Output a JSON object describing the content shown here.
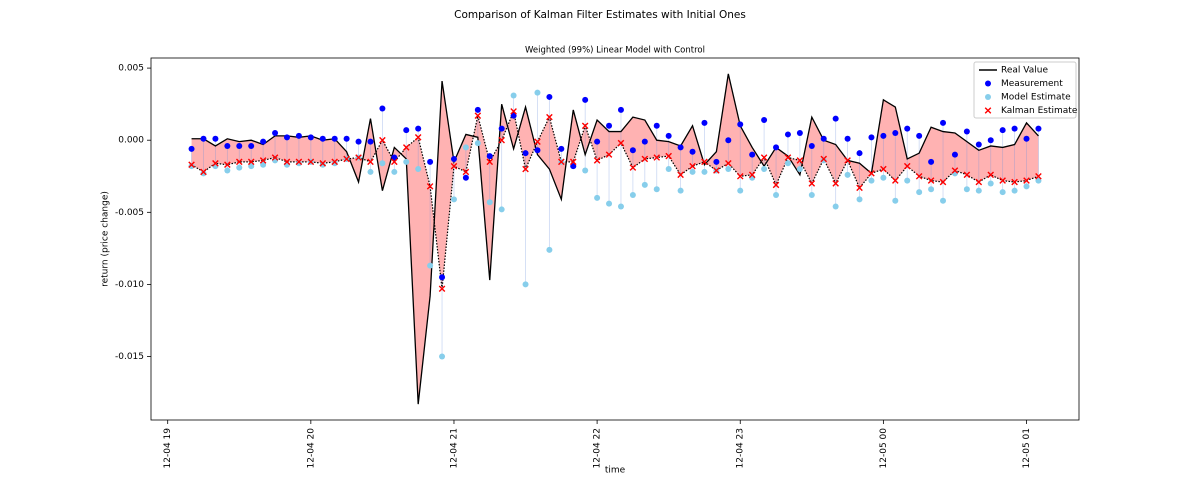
{
  "chart_data": {
    "type": "line",
    "title": "Comparison of Kalman Filter Estimates with Initial Ones",
    "subtitle": "Weighted (99%) Linear Model with Control",
    "x_label": "time",
    "y_label": "return (price change)",
    "legend": "upper right",
    "x": [
      "12-04 19:10",
      "12-04 19:15",
      "12-04 19:20",
      "12-04 19:25",
      "12-04 19:30",
      "12-04 19:35",
      "12-04 19:40",
      "12-04 19:45",
      "12-04 19:50",
      "12-04 19:55",
      "12-04 20:00",
      "12-04 20:05",
      "12-04 20:10",
      "12-04 20:15",
      "12-04 20:20",
      "12-04 20:25",
      "12-04 20:30",
      "12-04 20:35",
      "12-04 20:40",
      "12-04 20:45",
      "12-04 20:50",
      "12-04 20:55",
      "12-04 21:00",
      "12-04 21:05",
      "12-04 21:10",
      "12-04 21:15",
      "12-04 21:20",
      "12-04 21:25",
      "12-04 21:30",
      "12-04 21:35",
      "12-04 21:40",
      "12-04 21:45",
      "12-04 21:50",
      "12-04 21:55",
      "12-04 22:00",
      "12-04 22:05",
      "12-04 22:10",
      "12-04 22:15",
      "12-04 22:20",
      "12-04 22:25",
      "12-04 22:30",
      "12-04 22:35",
      "12-04 22:40",
      "12-04 22:45",
      "12-04 22:50",
      "12-04 22:55",
      "12-04 23:00",
      "12-04 23:05",
      "12-04 23:10",
      "12-04 23:15",
      "12-04 23:20",
      "12-04 23:25",
      "12-04 23:30",
      "12-04 23:35",
      "12-04 23:40",
      "12-04 23:45",
      "12-04 23:50",
      "12-04 23:55",
      "12-05 00:00",
      "12-05 00:05",
      "12-05 00:10",
      "12-05 00:15",
      "12-05 00:20",
      "12-05 00:25",
      "12-05 00:30",
      "12-05 00:35",
      "12-05 00:40",
      "12-05 00:45",
      "12-05 00:50",
      "12-05 00:55",
      "12-05 01:00",
      "12-05 01:05"
    ],
    "xlim": [
      "12-04 18:53",
      "12-05 01:22"
    ],
    "xticks": [
      {
        "value": "12-04 19:00",
        "label": "12-04 19"
      },
      {
        "value": "12-04 20:00",
        "label": "12-04 20"
      },
      {
        "value": "12-04 21:00",
        "label": "12-04 21"
      },
      {
        "value": "12-04 22:00",
        "label": "12-04 22"
      },
      {
        "value": "12-04 23:00",
        "label": "12-04 23"
      },
      {
        "value": "12-05 00:00",
        "label": "12-05 00"
      },
      {
        "value": "12-05 01:00",
        "label": "12-05 01"
      }
    ],
    "ylim": [
      -0.0194,
      0.0057
    ],
    "yticks": [
      -0.015,
      {
        "value": -0.01,
        "label": "-0.010"
      },
      -0.005,
      {
        "value": 0,
        "label": "0.000"
      },
      0.005
    ],
    "series": [
      {
        "name": "Real Value",
        "color": "#000000",
        "marker": "line",
        "values": [
          0.0001,
          0.0001,
          -0.0004,
          0.0001,
          -0.0001,
          0.0,
          -0.0003,
          0.0003,
          0.0003,
          0.0002,
          0.0003,
          0.0,
          0.0001,
          -0.0008,
          -0.0029,
          0.0015,
          -0.0035,
          -0.0005,
          -0.0013,
          -0.0183,
          -0.0108,
          0.0041,
          -0.0015,
          0.0004,
          0.0002,
          -0.0097,
          0.0025,
          -0.0006,
          0.0023,
          -0.001,
          -0.002,
          -0.0041,
          0.0021,
          -0.001,
          0.0014,
          0.0006,
          0.0006,
          0.0016,
          0.0014,
          0.0,
          -0.0001,
          -0.0004,
          0.001,
          -0.0017,
          -0.0008,
          0.0046,
          0.001,
          -0.0005,
          -0.0018,
          -0.0005,
          -0.0011,
          -0.0024,
          0.0016,
          0.0,
          -0.0003,
          -0.0014,
          -0.0016,
          -0.0023,
          0.0028,
          0.0023,
          -0.0013,
          -0.0009,
          0.0009,
          0.0006,
          0.0005,
          -0.0001,
          -0.0007,
          -0.0004,
          -0.0005,
          -0.0003,
          0.0012,
          0.0003
        ]
      },
      {
        "name": "Measurement",
        "color": "#0000ff",
        "marker": "dot",
        "values": [
          -0.0006,
          0.0001,
          0.0001,
          -0.0004,
          -0.0004,
          -0.0004,
          -0.0001,
          0.0005,
          0.0002,
          0.0003,
          0.0002,
          0.0001,
          0.0001,
          0.0001,
          -0.0001,
          -0.0001,
          0.0022,
          -0.0012,
          0.0007,
          0.0008,
          -0.0015,
          -0.0095,
          -0.0013,
          -0.0026,
          0.0021,
          -0.0011,
          0.0008,
          0.0017,
          -0.0009,
          -0.0007,
          0.003,
          -0.0006,
          -0.0018,
          0.0028,
          -0.0001,
          0.001,
          0.0021,
          -0.0007,
          -0.0001,
          0.001,
          0.0003,
          -0.0005,
          -0.0008,
          0.0012,
          -0.0015,
          0.0,
          0.0011,
          -0.001,
          0.0014,
          -0.0005,
          0.0004,
          0.0005,
          -0.0004,
          0.0001,
          0.0015,
          0.0001,
          -0.0009,
          0.0002,
          0.0003,
          0.0005,
          0.0008,
          0.0003,
          -0.0015,
          0.0012,
          -0.001,
          0.0006,
          -0.0003,
          0.0,
          0.0007,
          0.0008,
          0.0001,
          0.0008
        ]
      },
      {
        "name": "Model Estimate",
        "color": "#87ceeb",
        "marker": "dot",
        "values": [
          -0.0018,
          -0.0023,
          -0.0018,
          -0.0021,
          -0.0019,
          -0.0018,
          -0.0017,
          -0.0014,
          -0.0017,
          -0.0016,
          -0.0015,
          -0.0017,
          -0.0016,
          -0.0013,
          -0.0012,
          -0.0022,
          -0.0016,
          -0.0022,
          -0.0015,
          -0.002,
          -0.0087,
          -0.015,
          -0.0041,
          -0.0005,
          -0.0002,
          -0.0043,
          -0.0048,
          0.0031,
          -0.01,
          0.0033,
          -0.0076,
          -0.0015,
          -0.0018,
          -0.0021,
          -0.004,
          -0.0044,
          -0.0046,
          -0.0038,
          -0.0031,
          -0.0034,
          -0.002,
          -0.0035,
          -0.0022,
          -0.0022,
          -0.0021,
          -0.002,
          -0.0035,
          -0.0026,
          -0.002,
          -0.0038,
          -0.0016,
          -0.002,
          -0.0038,
          -0.0014,
          -0.0046,
          -0.0024,
          -0.0041,
          -0.0028,
          -0.0026,
          -0.0042,
          -0.0028,
          -0.0036,
          -0.0034,
          -0.0042,
          -0.0023,
          -0.0034,
          -0.0035,
          -0.003,
          -0.0036,
          -0.0035,
          -0.0032,
          -0.0028
        ]
      },
      {
        "name": "Kalman Estimate",
        "color": "#ff0000",
        "marker": "x",
        "values": [
          -0.0017,
          -0.0022,
          -0.0016,
          -0.0017,
          -0.0015,
          -0.0015,
          -0.0014,
          -0.0012,
          -0.0015,
          -0.0015,
          -0.0015,
          -0.0016,
          -0.0015,
          -0.0013,
          -0.0012,
          -0.0015,
          0.0,
          -0.0015,
          -0.0005,
          0.0002,
          -0.0032,
          -0.0103,
          -0.0018,
          -0.0022,
          0.0017,
          -0.0015,
          0.0,
          0.002,
          -0.002,
          -0.0001,
          0.0016,
          -0.0015,
          -0.0015,
          0.001,
          -0.0014,
          -0.001,
          -0.0002,
          -0.0019,
          -0.0013,
          -0.0012,
          -0.0011,
          -0.0024,
          -0.0018,
          -0.0015,
          -0.0021,
          -0.0016,
          -0.0025,
          -0.0024,
          -0.0012,
          -0.0031,
          -0.0012,
          -0.0014,
          -0.003,
          -0.0013,
          -0.003,
          -0.0014,
          -0.0033,
          -0.0023,
          -0.002,
          -0.0028,
          -0.0018,
          -0.0025,
          -0.0028,
          -0.0029,
          -0.0021,
          -0.0024,
          -0.0029,
          -0.0024,
          -0.0028,
          -0.0029,
          -0.0028,
          -0.0025
        ]
      }
    ]
  }
}
